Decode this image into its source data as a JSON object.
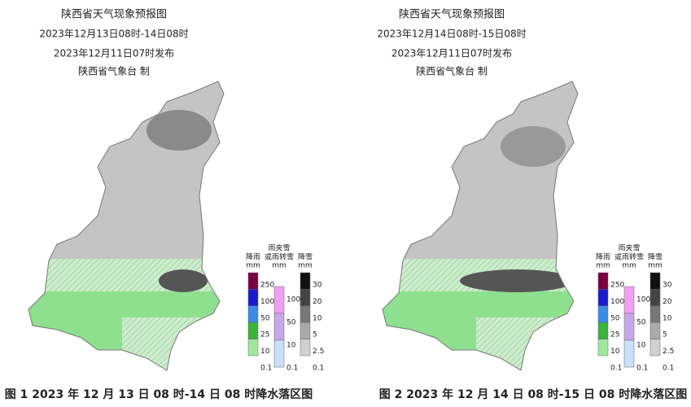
{
  "panels": [
    {
      "title": "陕西省天气现象预报图",
      "period": "2023年12月13日08时-14日08时",
      "issued": "2023年12月11日07时发布",
      "maker": "陕西省气象台 制",
      "caption": "图 1 2023 年 12 月 13 日 08 时-14 日 08 时降水落区图",
      "legend": {
        "rain": {
          "label": "降雨",
          "unit": "mm",
          "ticks": [
            250,
            100,
            50,
            25,
            10,
            0.1
          ]
        },
        "sleet": {
          "label_lines": [
            "雨夹雪",
            "或雨转雪"
          ],
          "unit": "mm",
          "ticks": [
            100,
            50,
            10,
            0.1
          ]
        },
        "snow": {
          "label": "降雪",
          "unit": "mm",
          "ticks": [
            30,
            20,
            10,
            5,
            2.5,
            0.1
          ]
        }
      }
    },
    {
      "title": "陕西省天气现象预报图",
      "period": "2023年12月14日08时-15日08时",
      "issued": "2023年12月11日07时发布",
      "maker": "陕西省气象台 制",
      "caption": "图 2 2023 年 12 月 14 日 08 时-15 日 08 时降水落区图",
      "legend": {
        "rain": {
          "label": "降雨",
          "unit": "mm",
          "ticks": [
            250,
            100,
            50,
            25,
            10,
            0.1
          ]
        },
        "sleet": {
          "label_lines": [
            "雨夹雪",
            "或雨转雪"
          ],
          "unit": "mm",
          "ticks": [
            100,
            50,
            10,
            0.1
          ]
        },
        "snow": {
          "label": "降雪",
          "unit": "mm",
          "ticks": [
            30,
            20,
            10,
            5,
            2.5,
            0.1
          ]
        }
      }
    }
  ]
}
